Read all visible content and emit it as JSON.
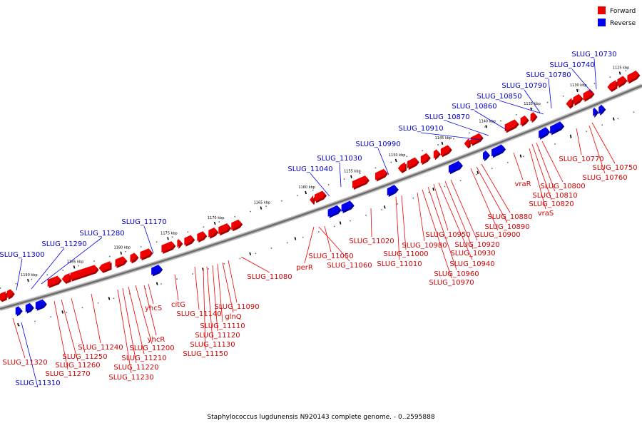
{
  "legend": {
    "forward": {
      "label": "Forward",
      "color": "#ee0000"
    },
    "reverse": {
      "label": "Reverse",
      "color": "#0000ee"
    }
  },
  "caption": "Staphylococcus lugdunensis N920143 complete genome. - 0..2595888",
  "ticks": [
    "1125 kbp",
    "1130 kbp",
    "1135 kbp",
    "1140 kbp",
    "1145 kbp",
    "1150 kbp",
    "1155 kbp",
    "1160 kbp",
    "1165 kbp",
    "1170 kbp",
    "1175 kbp",
    "1180 kbp",
    "1185 kbp",
    "1190 kbp"
  ],
  "reverse_genes": [
    "SLUG_10730",
    "SLUG_10740",
    "SLUG_10780",
    "SLUG_10790",
    "SLUG_10850",
    "SLUG_10860",
    "SLUG_10870",
    "SLUG_10910",
    "SLUG_10990",
    "SLUG_11030",
    "SLUG_11040",
    "SLUG_11170",
    "SLUG_11280",
    "SLUG_11290",
    "SLUG_11300",
    "SLUG_11310"
  ],
  "forward_genes": [
    "SLUG_10750",
    "SLUG_10760",
    "SLUG_10770",
    "SLUG_10800",
    "SLUG_10810",
    "SLUG_10820",
    "vraR",
    "vraS",
    "SLUG_10880",
    "SLUG_10890",
    "SLUG_10900",
    "SLUG_10920",
    "SLUG_10930",
    "SLUG_10940",
    "SLUG_10950",
    "SLUG_10960",
    "SLUG_10970",
    "SLUG_10980",
    "SLUG_11000",
    "SLUG_11010",
    "SLUG_11020",
    "SLUG_11050",
    "SLUG_11060",
    "perR",
    "SLUG_11080",
    "SLUG_11090",
    "glnQ",
    "SLUG_11110",
    "SLUG_11120",
    "SLUG_11130",
    "SLUG_11140",
    "SLUG_11150",
    "citG",
    "yhcS",
    "yhcR",
    "SLUG_11200",
    "SLUG_11210",
    "SLUG_11220",
    "SLUG_11230",
    "SLUG_11240",
    "SLUG_11250",
    "SLUG_11260",
    "SLUG_11270",
    "SLUG_11320"
  ]
}
